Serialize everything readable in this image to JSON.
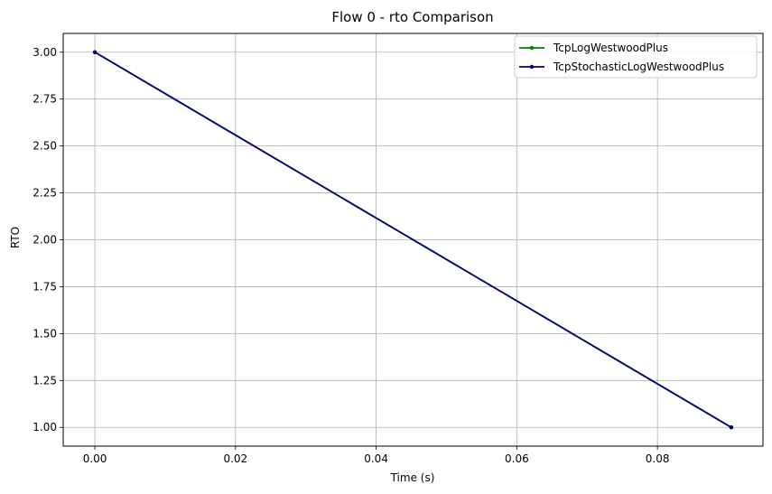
{
  "chart_data": {
    "type": "line",
    "title": "Flow 0 - rto Comparison",
    "xlabel": "Time (s)",
    "ylabel": "RTO",
    "xlim": [
      -0.0045,
      0.095
    ],
    "ylim": [
      0.9,
      3.1
    ],
    "xticks": [
      0.0,
      0.02,
      0.04,
      0.06,
      0.08
    ],
    "xtick_labels": [
      "0.00",
      "0.02",
      "0.04",
      "0.06",
      "0.08"
    ],
    "yticks": [
      1.0,
      1.25,
      1.5,
      1.75,
      2.0,
      2.25,
      2.5,
      2.75,
      3.0
    ],
    "ytick_labels": [
      "1.00",
      "1.25",
      "1.50",
      "1.75",
      "2.00",
      "2.25",
      "2.50",
      "2.75",
      "3.00"
    ],
    "grid": true,
    "legend_position": "top-right",
    "series": [
      {
        "name": "TcpLogWestwoodPlus",
        "color": "#008000",
        "x": [
          0.0,
          0.0905
        ],
        "y": [
          3.0,
          1.0
        ]
      },
      {
        "name": "TcpStochasticLogWestwoodPlus",
        "color": "#000080",
        "x": [
          0.0,
          0.0905
        ],
        "y": [
          3.0,
          1.0
        ]
      }
    ]
  }
}
